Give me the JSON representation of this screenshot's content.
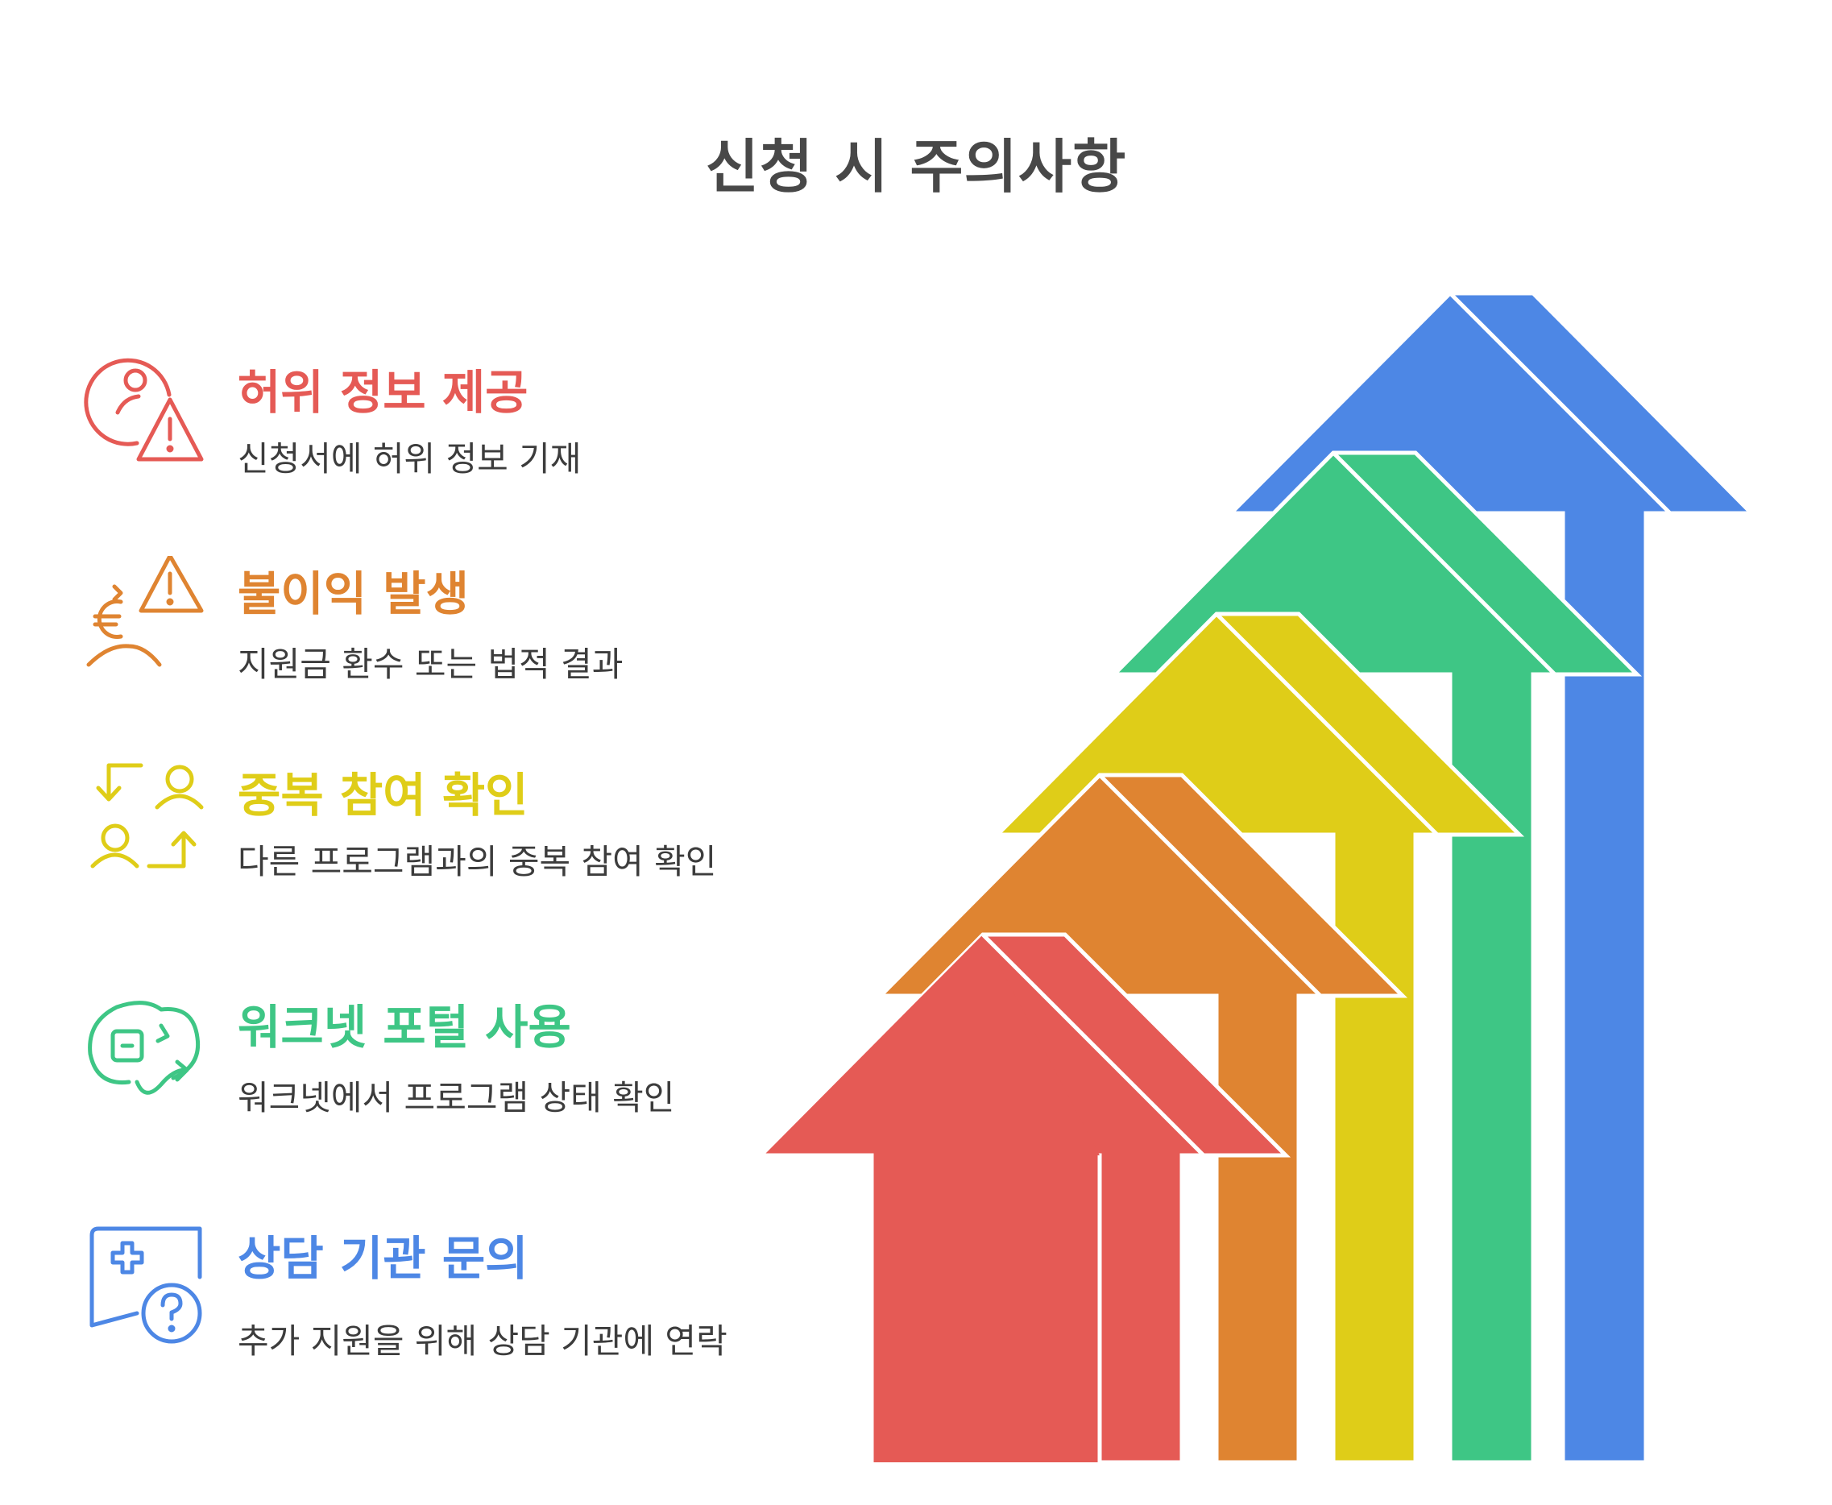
{
  "title": "신청 시 주의사항",
  "items": [
    {
      "heading": "허위 정보 제공",
      "description": "신청서에 허위 정보 기재",
      "icon": "person-warning-icon",
      "color": "#e55a55"
    },
    {
      "heading": "불이익 발생",
      "description": "지원금 환수 또는 법적 결과",
      "icon": "euro-warning-icon",
      "color": "#df8431"
    },
    {
      "heading": "중복 참여 확인",
      "description": "다른 프로그램과의 중복 참여 확인",
      "icon": "people-swap-icon",
      "color": "#dfcd18"
    },
    {
      "heading": "워크넷 포털 사용",
      "description": "워크넷에서 프로그램 상태 확인",
      "icon": "web-portal-icon",
      "color": "#3ec685"
    },
    {
      "heading": "상담 기관 문의",
      "description": "추가 지원을 위해 상담 기관에 연락",
      "icon": "help-chat-icon",
      "color": "#4d87e5"
    }
  ]
}
